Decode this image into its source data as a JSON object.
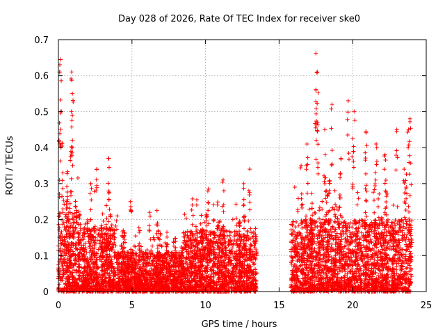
{
  "chart_data": {
    "type": "scatter",
    "title": "Day 028 of 2026, Rate Of TEC Index for receiver ske0",
    "xlabel": "GPS time / hours",
    "ylabel": "ROTI / TECUs",
    "xlim": [
      0,
      25
    ],
    "ylim": [
      0,
      0.7
    ],
    "xticks": [
      "0",
      "5",
      "10",
      "15",
      "20",
      "25"
    ],
    "yticks": [
      "0",
      "0.1",
      "0.2",
      "0.3",
      "0.4",
      "0.5",
      "0.6",
      "0.7"
    ],
    "grid": true,
    "marker": "+",
    "color": "#ff0000",
    "series": [
      {
        "name": "ROTI",
        "segments": [
          {
            "x_start": 0.0,
            "x_end": 1.5,
            "base_max": 0.22
          },
          {
            "x_start": 1.5,
            "x_end": 4.0,
            "base_max": 0.18
          },
          {
            "x_start": 4.0,
            "x_end": 8.5,
            "base_max": 0.11
          },
          {
            "x_start": 8.5,
            "x_end": 13.5,
            "base_max": 0.17
          },
          {
            "x_start": 15.8,
            "x_end": 24.0,
            "base_max": 0.2
          }
        ],
        "peaks": [
          {
            "x": 0.15,
            "y": 0.645
          },
          {
            "x": 0.1,
            "y": 0.61
          },
          {
            "x": 0.9,
            "y": 0.61
          },
          {
            "x": 0.95,
            "y": 0.55
          },
          {
            "x": 0.2,
            "y": 0.5
          },
          {
            "x": 0.95,
            "y": 0.49
          },
          {
            "x": 0.1,
            "y": 0.41
          },
          {
            "x": 0.85,
            "y": 0.39
          },
          {
            "x": 0.3,
            "y": 0.33
          },
          {
            "x": 3.4,
            "y": 0.37
          },
          {
            "x": 2.6,
            "y": 0.34
          },
          {
            "x": 2.2,
            "y": 0.3
          },
          {
            "x": 4.9,
            "y": 0.25
          },
          {
            "x": 6.7,
            "y": 0.225
          },
          {
            "x": 6.2,
            "y": 0.22
          },
          {
            "x": 11.2,
            "y": 0.31
          },
          {
            "x": 13.0,
            "y": 0.34
          },
          {
            "x": 10.2,
            "y": 0.285
          },
          {
            "x": 12.6,
            "y": 0.3
          },
          {
            "x": 17.5,
            "y": 0.662
          },
          {
            "x": 17.6,
            "y": 0.61
          },
          {
            "x": 17.5,
            "y": 0.56
          },
          {
            "x": 18.6,
            "y": 0.52
          },
          {
            "x": 19.7,
            "y": 0.53
          },
          {
            "x": 20.1,
            "y": 0.5
          },
          {
            "x": 17.6,
            "y": 0.47
          },
          {
            "x": 23.9,
            "y": 0.48
          },
          {
            "x": 23.8,
            "y": 0.45
          },
          {
            "x": 23.0,
            "y": 0.45
          },
          {
            "x": 20.9,
            "y": 0.445
          },
          {
            "x": 18.1,
            "y": 0.45
          },
          {
            "x": 16.9,
            "y": 0.41
          },
          {
            "x": 20.0,
            "y": 0.425
          },
          {
            "x": 21.6,
            "y": 0.41
          },
          {
            "x": 22.2,
            "y": 0.38
          },
          {
            "x": 16.5,
            "y": 0.35
          },
          {
            "x": 23.5,
            "y": 0.34
          },
          {
            "x": 19.2,
            "y": 0.37
          }
        ]
      }
    ]
  }
}
